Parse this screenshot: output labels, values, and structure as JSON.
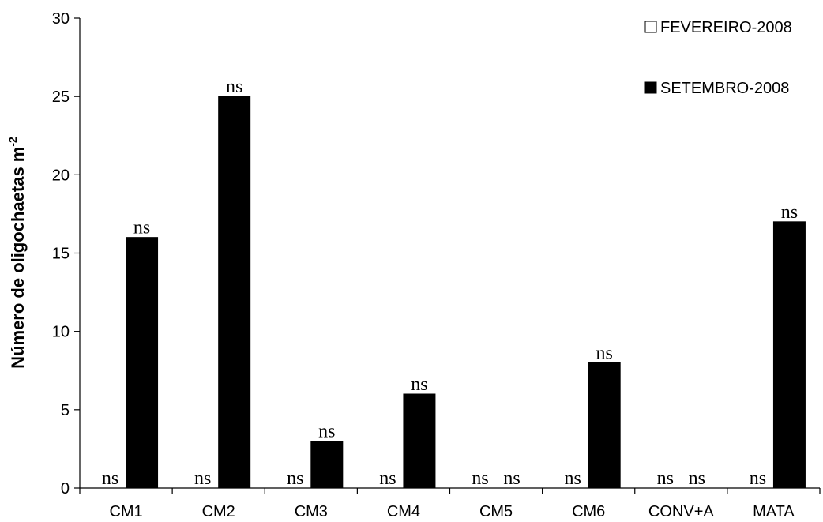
{
  "chart_data": {
    "type": "bar",
    "title": "",
    "xlabel": "",
    "ylabel": "Número de oligochaetas m",
    "ylabel_superscript": "-2",
    "ylim": [
      0,
      30
    ],
    "yticks": [
      "0",
      "5",
      "10",
      "15",
      "20",
      "25",
      "30"
    ],
    "categories": [
      "CM1",
      "CM2",
      "CM3",
      "CM4",
      "CM5",
      "CM6",
      "CONV+A",
      "MATA"
    ],
    "series": [
      {
        "name": "FEVEREIRO-2008",
        "color": "#ffffff",
        "values": [
          0,
          0,
          0,
          0,
          0,
          0,
          0,
          0
        ],
        "annotations": [
          "ns",
          "ns",
          "ns",
          "ns",
          "ns",
          "ns",
          "ns",
          "ns"
        ]
      },
      {
        "name": "SETEMBRO-2008",
        "color": "#000000",
        "values": [
          16,
          25,
          3,
          6,
          0,
          8,
          0,
          17
        ],
        "annotations": [
          "ns",
          "ns",
          "ns",
          "ns",
          "ns",
          "ns",
          "ns",
          "ns"
        ]
      }
    ],
    "legend_position": "top-right",
    "grid": false
  }
}
